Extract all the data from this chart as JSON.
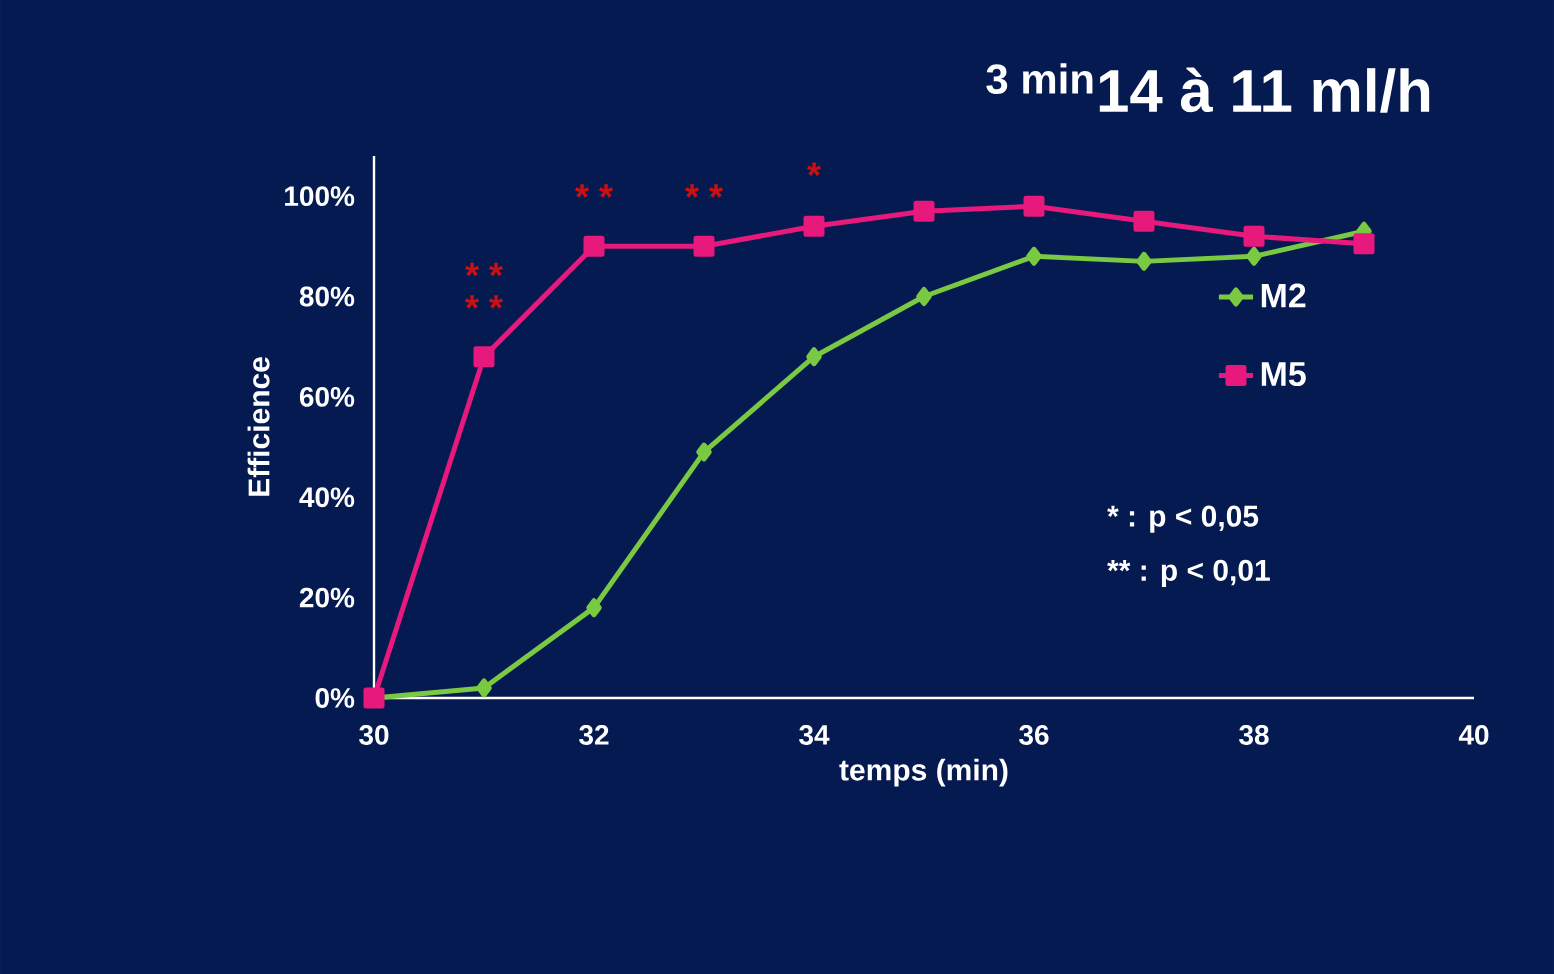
{
  "chart_data": {
    "type": "line",
    "title": "$^{3 min}$14 à 11 ml/h",
    "xlabel": "temps (min)",
    "ylabel": "Efficience",
    "x": [
      30,
      31,
      32,
      33,
      34,
      35,
      36,
      37,
      38,
      39
    ],
    "series": [
      {
        "name": "M2",
        "color": "#7ac943",
        "marker": "diamond",
        "values": [
          0,
          2,
          18,
          49,
          68,
          80,
          88,
          87,
          88,
          93
        ]
      },
      {
        "name": "M5",
        "color": "#e8197d",
        "marker": "square",
        "values": [
          0,
          68,
          90,
          90,
          94,
          97,
          98,
          95,
          92,
          90.5
        ]
      }
    ],
    "xlim": [
      30,
      40
    ],
    "xticks": [
      30,
      32,
      34,
      36,
      38,
      40
    ],
    "ylim": [
      0,
      108
    ],
    "yticks": [
      {
        "value": 0,
        "label": "0%"
      },
      {
        "value": 20,
        "label": "20%"
      },
      {
        "value": 40,
        "label": "40%"
      },
      {
        "value": 60,
        "label": "60%"
      },
      {
        "value": 80,
        "label": "80%"
      },
      {
        "value": 100,
        "label": "100%"
      }
    ],
    "annotations": [
      "* *",
      "* *",
      "* *",
      "* *",
      "*",
      "* : p < 0,05",
      "** : p < 0,01"
    ],
    "legend": "right",
    "grid": false,
    "line_style": "solid"
  }
}
